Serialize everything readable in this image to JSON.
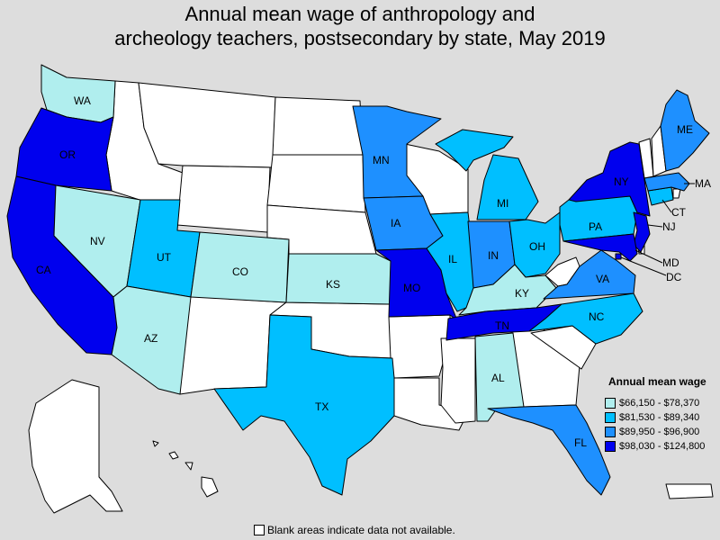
{
  "title": {
    "line1": "Annual mean wage of anthropology and",
    "line2": "archeology teachers, postsecondary by state, May 2019"
  },
  "colors": {
    "no_data": "#ffffff",
    "tier1": "#b0eeee",
    "tier2": "#00bfff",
    "tier3": "#1e90ff",
    "tier4": "#0000ee",
    "background": "#dddddd"
  },
  "legend": {
    "title": "Annual mean wage",
    "items": [
      {
        "label": "$66,150 - $78,370",
        "tier": "tier1"
      },
      {
        "label": "$81,530 - $89,340",
        "tier": "tier2"
      },
      {
        "label": "$89,950 - $96,900",
        "tier": "tier3"
      },
      {
        "label": "$98,030 - $124,800",
        "tier": "tier4"
      }
    ]
  },
  "footnote": "Blank areas indicate data not available.",
  "states": {
    "WA": {
      "label": "WA",
      "tier": "tier1"
    },
    "OR": {
      "label": "OR",
      "tier": "tier4"
    },
    "CA": {
      "label": "CA",
      "tier": "tier4"
    },
    "NV": {
      "label": "NV",
      "tier": "tier1"
    },
    "UT": {
      "label": "UT",
      "tier": "tier2"
    },
    "AZ": {
      "label": "AZ",
      "tier": "tier1"
    },
    "CO": {
      "label": "CO",
      "tier": "tier1"
    },
    "KS": {
      "label": "KS",
      "tier": "tier1"
    },
    "TX": {
      "label": "TX",
      "tier": "tier2"
    },
    "MN": {
      "label": "MN",
      "tier": "tier3"
    },
    "IA": {
      "label": "IA",
      "tier": "tier3"
    },
    "MO": {
      "label": "MO",
      "tier": "tier4"
    },
    "IL": {
      "label": "IL",
      "tier": "tier2"
    },
    "IN": {
      "label": "IN",
      "tier": "tier3"
    },
    "MI": {
      "label": "MI",
      "tier": "tier2"
    },
    "OH": {
      "label": "OH",
      "tier": "tier2"
    },
    "KY": {
      "label": "KY",
      "tier": "tier1"
    },
    "TN": {
      "label": "TN",
      "tier": "tier4"
    },
    "AL": {
      "label": "AL",
      "tier": "tier1"
    },
    "FL": {
      "label": "FL",
      "tier": "tier3"
    },
    "NC": {
      "label": "NC",
      "tier": "tier2"
    },
    "VA": {
      "label": "VA",
      "tier": "tier3"
    },
    "PA": {
      "label": "PA",
      "tier": "tier2"
    },
    "NY": {
      "label": "NY",
      "tier": "tier4"
    },
    "NJ": {
      "label": "NJ",
      "tier": "tier4"
    },
    "MD": {
      "label": "MD",
      "tier": "tier4"
    },
    "DC": {
      "label": "DC",
      "tier": "tier4"
    },
    "CT": {
      "label": "CT",
      "tier": "tier2"
    },
    "MA": {
      "label": "MA",
      "tier": "tier3"
    },
    "ME": {
      "label": "ME",
      "tier": "tier3"
    }
  }
}
